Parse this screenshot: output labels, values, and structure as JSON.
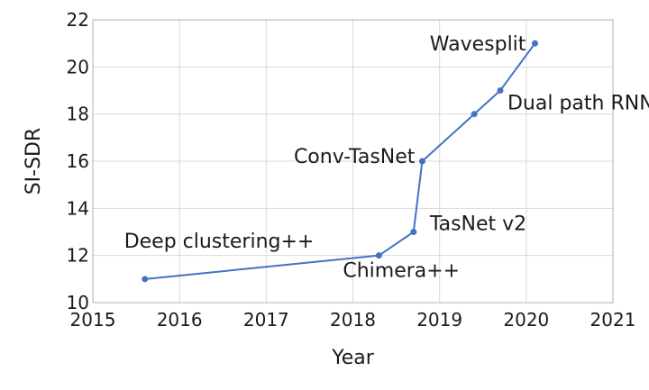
{
  "chart_data": {
    "type": "line",
    "title": "",
    "xlabel": "Year",
    "ylabel": "SI-SDR",
    "xlim": [
      2015,
      2021
    ],
    "ylim": [
      10,
      22
    ],
    "xticks": [
      2015,
      2016,
      2017,
      2018,
      2019,
      2020,
      2021
    ],
    "yticks": [
      10,
      12,
      14,
      16,
      18,
      20,
      22
    ],
    "grid": true,
    "legend": "none",
    "colors": {
      "line": "#4472c4",
      "grid": "#d9d9d9",
      "axis": "#b0b0b0"
    },
    "series": [
      {
        "x": [
          2015.6,
          2018.3,
          2018.7,
          2018.8,
          2019.4,
          2019.7,
          2020.1
        ],
        "y": [
          11.0,
          12.0,
          13.0,
          16.0,
          18.0,
          19.0,
          21.0
        ]
      }
    ],
    "annotations": [
      {
        "text": "Deep clustering++",
        "x": 2015.6,
        "y": 11.0
      },
      {
        "text": "Chimera++",
        "x": 2018.3,
        "y": 12.0
      },
      {
        "text": "TasNet v2",
        "x": 2018.7,
        "y": 13.0
      },
      {
        "text": "Conv-TasNet",
        "x": 2018.8,
        "y": 16.0
      },
      {
        "text": "Dual path RNN",
        "x": 2019.7,
        "y": 19.0
      },
      {
        "text": "Wavesplit",
        "x": 2020.1,
        "y": 21.0
      }
    ]
  }
}
